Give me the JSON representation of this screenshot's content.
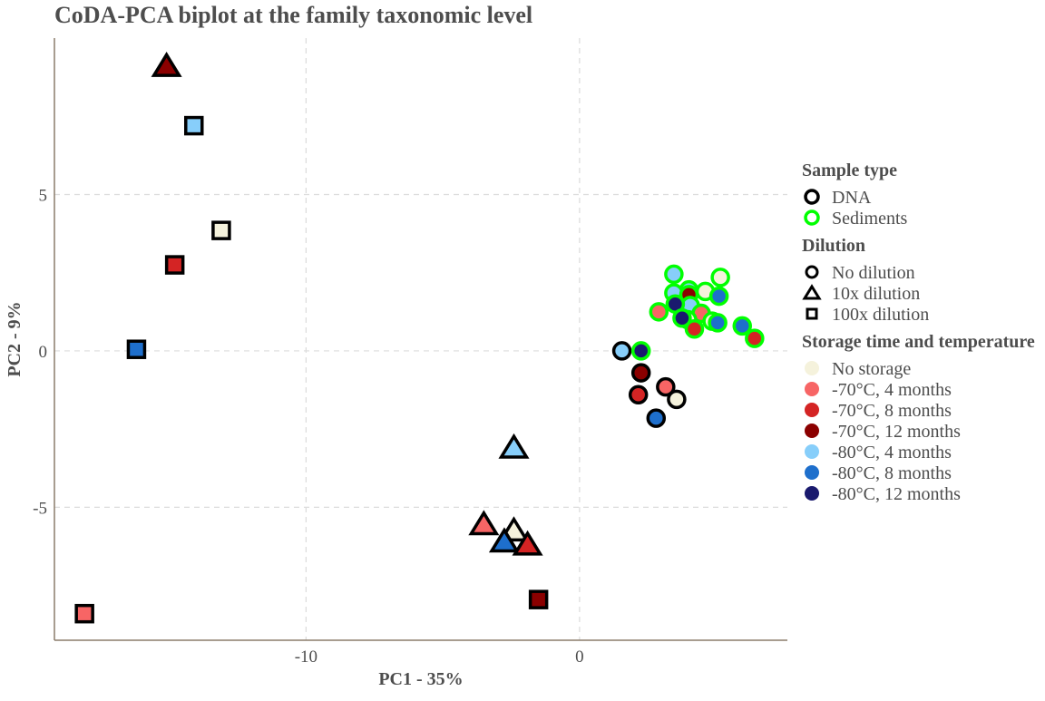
{
  "chart_data": {
    "type": "scatter",
    "title": "CoDA-PCA biplot at the family taxonomic level",
    "xlabel": "PC1 - 35%",
    "ylabel": "PC2 - 9%",
    "xlim": [
      -19.2,
      7.6
    ],
    "ylim": [
      -9.25,
      10.0
    ],
    "x_ticks": [
      -10,
      0
    ],
    "x_tick_labels": [
      "-10",
      "0"
    ],
    "y_ticks": [
      -5,
      0,
      5
    ],
    "y_tick_labels": [
      "-5",
      "0",
      "5"
    ],
    "grid": true,
    "legend_position": "right",
    "legends": [
      {
        "title": "Sample type",
        "kind": "outline",
        "items": [
          {
            "label": "DNA",
            "key": "DNA",
            "color": "#000000"
          },
          {
            "label": "Sediments",
            "key": "Sediments",
            "color": "#00ff00"
          }
        ]
      },
      {
        "title": "Dilution",
        "kind": "shape",
        "items": [
          {
            "label": "No dilution",
            "key": "circle"
          },
          {
            "label": "10x dilution",
            "key": "triangle"
          },
          {
            "label": "100x dilution",
            "key": "square"
          }
        ]
      },
      {
        "title": "Storage time and temperature",
        "kind": "fill",
        "items": [
          {
            "label": "No storage",
            "key": "ns",
            "color": "#f5f2dc"
          },
          {
            "label": "-70°C, 4 months",
            "key": "m70_4",
            "color": "#f76565"
          },
          {
            "label": "-70°C, 8 months",
            "key": "m70_8",
            "color": "#d42424"
          },
          {
            "label": "-70°C, 12 months",
            "key": "m70_12",
            "color": "#8b0000"
          },
          {
            "label": "-80°C, 4 months",
            "key": "m80_4",
            "color": "#87cefa"
          },
          {
            "label": "-80°C, 8 months",
            "key": "m80_8",
            "color": "#1e6fcc"
          },
          {
            "label": "-80°C, 12 months",
            "key": "m80_12",
            "color": "#1a1a6e"
          }
        ]
      }
    ],
    "points": [
      {
        "x": -15.1,
        "y": 9.1,
        "shape": "triangle",
        "sample": "DNA",
        "storage": "m70_12"
      },
      {
        "x": -14.1,
        "y": 7.2,
        "shape": "square",
        "sample": "DNA",
        "storage": "m80_4"
      },
      {
        "x": -13.1,
        "y": 3.85,
        "shape": "square",
        "sample": "DNA",
        "storage": "ns"
      },
      {
        "x": -14.8,
        "y": 2.75,
        "shape": "square",
        "sample": "DNA",
        "storage": "m70_8"
      },
      {
        "x": -16.2,
        "y": 0.05,
        "shape": "square",
        "sample": "DNA",
        "storage": "m80_8"
      },
      {
        "x": -18.1,
        "y": -8.4,
        "shape": "square",
        "sample": "DNA",
        "storage": "m70_4"
      },
      {
        "x": -1.5,
        "y": -7.95,
        "shape": "square",
        "sample": "DNA",
        "storage": "m70_12"
      },
      {
        "x": -2.4,
        "y": -3.1,
        "shape": "triangle",
        "sample": "DNA",
        "storage": "m80_4"
      },
      {
        "x": -3.5,
        "y": -5.55,
        "shape": "triangle",
        "sample": "DNA",
        "storage": "m70_4"
      },
      {
        "x": -2.4,
        "y": -5.75,
        "shape": "triangle",
        "sample": "DNA",
        "storage": "ns"
      },
      {
        "x": -2.75,
        "y": -6.1,
        "shape": "triangle",
        "sample": "DNA",
        "storage": "m80_8"
      },
      {
        "x": -1.9,
        "y": -6.2,
        "shape": "triangle",
        "sample": "DNA",
        "storage": "m70_8"
      },
      {
        "x": 1.55,
        "y": 0.0,
        "shape": "circle",
        "sample": "DNA",
        "storage": "m80_4"
      },
      {
        "x": 2.25,
        "y": -0.7,
        "shape": "circle",
        "sample": "DNA",
        "storage": "m70_12"
      },
      {
        "x": 2.15,
        "y": -1.4,
        "shape": "circle",
        "sample": "DNA",
        "storage": "m70_8"
      },
      {
        "x": 3.15,
        "y": -1.15,
        "shape": "circle",
        "sample": "DNA",
        "storage": "m70_4"
      },
      {
        "x": 3.55,
        "y": -1.55,
        "shape": "circle",
        "sample": "DNA",
        "storage": "ns"
      },
      {
        "x": 2.8,
        "y": -2.15,
        "shape": "circle",
        "sample": "DNA",
        "storage": "m80_8"
      },
      {
        "x": 2.25,
        "y": 0.0,
        "shape": "circle",
        "sample": "Sediments",
        "storage": "m80_12"
      },
      {
        "x": 3.45,
        "y": 2.45,
        "shape": "circle",
        "sample": "Sediments",
        "storage": "m80_4"
      },
      {
        "x": 5.15,
        "y": 2.35,
        "shape": "circle",
        "sample": "Sediments",
        "storage": "ns"
      },
      {
        "x": 4.0,
        "y": 1.95,
        "shape": "circle",
        "sample": "Sediments",
        "storage": "m80_4"
      },
      {
        "x": 4.6,
        "y": 1.9,
        "shape": "circle",
        "sample": "Sediments",
        "storage": "ns"
      },
      {
        "x": 3.45,
        "y": 1.85,
        "shape": "circle",
        "sample": "Sediments",
        "storage": "m80_4"
      },
      {
        "x": 4.0,
        "y": 1.8,
        "shape": "circle",
        "sample": "Sediments",
        "storage": "m70_12"
      },
      {
        "x": 5.1,
        "y": 1.75,
        "shape": "circle",
        "sample": "Sediments",
        "storage": "m80_8"
      },
      {
        "x": 4.05,
        "y": 1.45,
        "shape": "circle",
        "sample": "Sediments",
        "storage": "m80_4"
      },
      {
        "x": 3.5,
        "y": 1.5,
        "shape": "circle",
        "sample": "Sediments",
        "storage": "m80_12"
      },
      {
        "x": 2.9,
        "y": 1.25,
        "shape": "circle",
        "sample": "Sediments",
        "storage": "m70_4"
      },
      {
        "x": 4.45,
        "y": 1.2,
        "shape": "circle",
        "sample": "Sediments",
        "storage": "m70_4"
      },
      {
        "x": 3.95,
        "y": 1.0,
        "shape": "circle",
        "sample": "Sediments",
        "storage": "ns"
      },
      {
        "x": 3.75,
        "y": 1.05,
        "shape": "circle",
        "sample": "Sediments",
        "storage": "m80_12"
      },
      {
        "x": 4.85,
        "y": 0.95,
        "shape": "circle",
        "sample": "Sediments",
        "storage": "ns"
      },
      {
        "x": 5.05,
        "y": 0.9,
        "shape": "circle",
        "sample": "Sediments",
        "storage": "m80_8"
      },
      {
        "x": 4.2,
        "y": 0.7,
        "shape": "circle",
        "sample": "Sediments",
        "storage": "m70_8"
      },
      {
        "x": 5.95,
        "y": 0.8,
        "shape": "circle",
        "sample": "Sediments",
        "storage": "m80_8"
      },
      {
        "x": 6.4,
        "y": 0.4,
        "shape": "circle",
        "sample": "Sediments",
        "storage": "m70_8"
      }
    ]
  }
}
